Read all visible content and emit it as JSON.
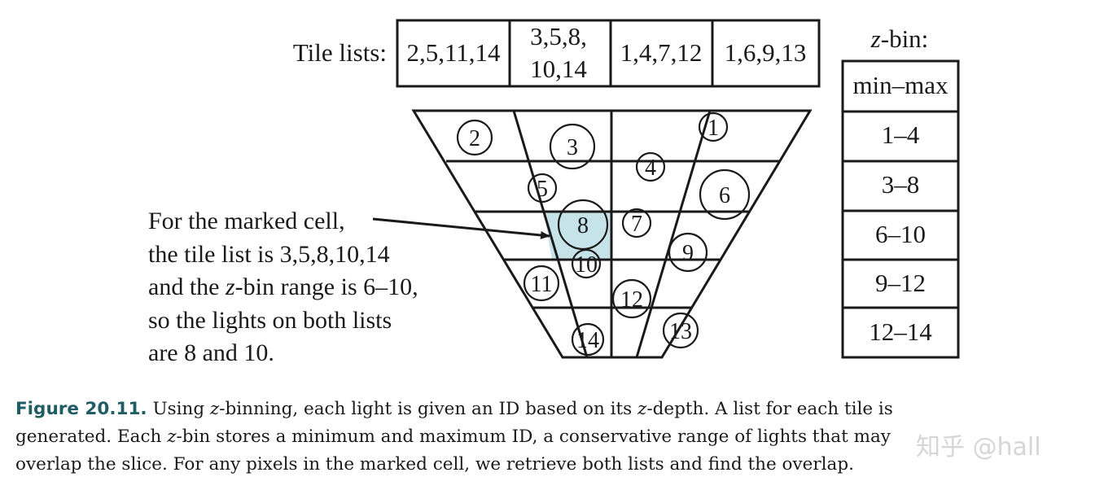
{
  "tile_lists": {
    "label": "Tile lists:",
    "cells": [
      [
        "2,5,11,14"
      ],
      [
        "3,5,8,",
        "10,14"
      ],
      [
        "1,4,7,12"
      ],
      [
        "1,6,9,13"
      ]
    ]
  },
  "zbin": {
    "label_z": "z",
    "label_rest": "-bin:",
    "header": "min–max",
    "rows": [
      "1–4",
      "3–8",
      "6–10",
      "9–12",
      "12–14"
    ]
  },
  "lights": [
    "1",
    "2",
    "3",
    "4",
    "5",
    "6",
    "7",
    "8",
    "9",
    "10",
    "11",
    "12",
    "13",
    "14"
  ],
  "annotation": {
    "line1": "For the marked cell,",
    "line2": "the tile list is 3,5,8,10,14",
    "line3_pre": "and the ",
    "line3_z": "z",
    "line3_post": "-bin range is 6–10,",
    "line4": "so the lights on both lists",
    "line5": "are 8 and 10."
  },
  "colors": {
    "highlight": "#c6e3ea",
    "caption_label": "#1f5c63",
    "ink": "#1a1a1a"
  },
  "caption": {
    "label": "Figure 20.11.",
    "l1_a": " Using ",
    "l1_z1": "z",
    "l1_b": "-binning, each light is given an ID based on its ",
    "l1_z2": "z",
    "l1_c": "-depth. A list for each tile is",
    "l2_a": "generated. Each ",
    "l2_z": "z",
    "l2_b": "-bin stores a minimum and maximum ID, a conservative range of lights that may",
    "l3": "overlap the slice. For any pixels in the marked cell, we retrieve both lists and find the overlap."
  },
  "watermark": "知乎 @hall"
}
